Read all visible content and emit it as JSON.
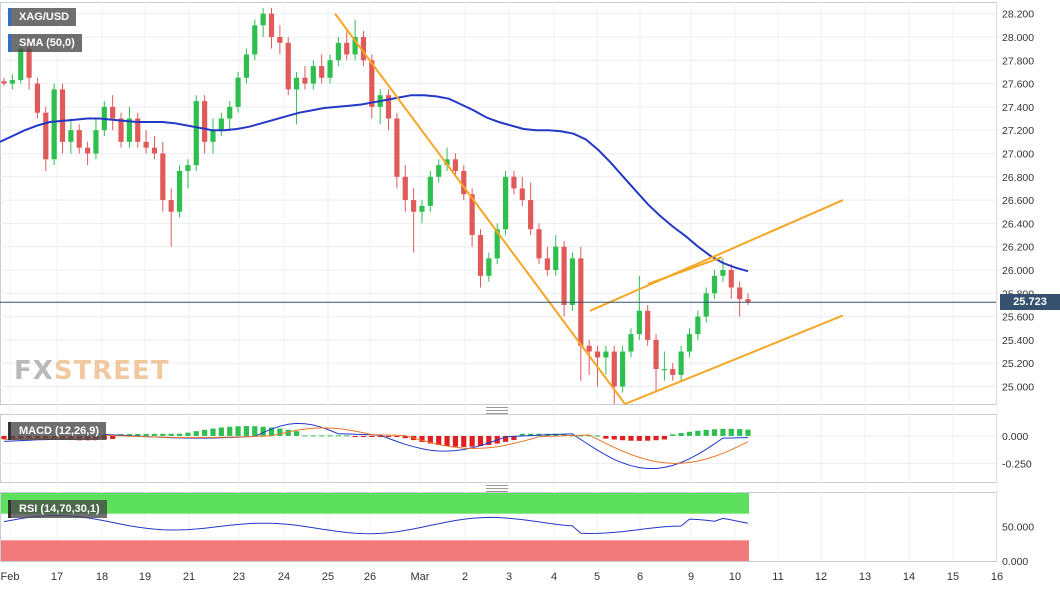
{
  "chart": {
    "symbol": "XAG/USD",
    "indicator_sma": "SMA (50,0)",
    "indicator_macd": "MACD (12,26,9)",
    "indicator_rsi": "RSI (14,70,30,1)",
    "last_price_label": "25.723",
    "watermark_fx": "FX",
    "watermark_street": "STREET"
  },
  "chart_data": [
    {
      "type": "candlestick",
      "title": "XAG/USD",
      "y_ticks": [
        "28.200",
        "28.000",
        "27.800",
        "27.600",
        "27.400",
        "27.200",
        "27.000",
        "26.800",
        "26.600",
        "26.400",
        "26.200",
        "26.000",
        "25.800",
        "25.600",
        "25.400",
        "25.200",
        "25.000"
      ],
      "x_ticks": [
        "Feb",
        "17",
        "18",
        "19",
        "21",
        "23",
        "24",
        "25",
        "26",
        "Mar",
        "2",
        "3",
        "4",
        "5",
        "6",
        "9",
        "10",
        "11",
        "12",
        "13",
        "14",
        "15",
        "16"
      ],
      "ylim": [
        24.85,
        28.3
      ],
      "last_price": 25.723,
      "colors": {
        "up": "#2fbf4f",
        "down": "#e05a5a",
        "sma": "#2438c8",
        "trendline": "#f5a623",
        "price_line": "#36506f"
      },
      "candles": [
        [
          27.62,
          27.65,
          27.58,
          27.6
        ],
        [
          27.6,
          27.68,
          27.55,
          27.63
        ],
        [
          27.63,
          27.95,
          27.6,
          27.9
        ],
        [
          27.9,
          27.95,
          27.55,
          27.65
        ],
        [
          27.6,
          27.65,
          27.3,
          27.35
        ],
        [
          27.35,
          27.4,
          26.85,
          26.95
        ],
        [
          26.95,
          27.6,
          26.9,
          27.55
        ],
        [
          27.55,
          27.6,
          27.0,
          27.1
        ],
        [
          27.1,
          27.3,
          27.0,
          27.2
        ],
        [
          27.2,
          27.25,
          27.0,
          27.05
        ],
        [
          27.05,
          27.1,
          26.9,
          27.0
        ],
        [
          27.0,
          27.3,
          26.95,
          27.2
        ],
        [
          27.2,
          27.45,
          27.15,
          27.4
        ],
        [
          27.4,
          27.5,
          27.2,
          27.3
        ],
        [
          27.3,
          27.35,
          27.05,
          27.1
        ],
        [
          27.1,
          27.4,
          27.05,
          27.3
        ],
        [
          27.3,
          27.35,
          27.05,
          27.1
        ],
        [
          27.1,
          27.2,
          27.0,
          27.05
        ],
        [
          27.05,
          27.15,
          26.95,
          27.0
        ],
        [
          27.0,
          27.1,
          26.5,
          26.6
        ],
        [
          26.6,
          26.7,
          26.2,
          26.5
        ],
        [
          26.5,
          26.9,
          26.45,
          26.85
        ],
        [
          26.85,
          26.95,
          26.7,
          26.9
        ],
        [
          26.9,
          27.5,
          26.85,
          27.45
        ],
        [
          27.45,
          27.5,
          27.0,
          27.1
        ],
        [
          27.1,
          27.3,
          27.0,
          27.2
        ],
        [
          27.2,
          27.35,
          27.15,
          27.3
        ],
        [
          27.3,
          27.45,
          27.2,
          27.4
        ],
        [
          27.4,
          27.7,
          27.35,
          27.65
        ],
        [
          27.65,
          27.9,
          27.6,
          27.85
        ],
        [
          27.85,
          28.15,
          27.8,
          28.1
        ],
        [
          28.1,
          28.25,
          28.0,
          28.2
        ],
        [
          28.2,
          28.25,
          27.9,
          28.0
        ],
        [
          28.0,
          28.1,
          27.85,
          27.95
        ],
        [
          27.95,
          28.0,
          27.5,
          27.55
        ],
        [
          27.55,
          27.7,
          27.25,
          27.65
        ],
        [
          27.65,
          27.75,
          27.55,
          27.6
        ],
        [
          27.6,
          27.8,
          27.55,
          27.75
        ],
        [
          27.75,
          27.85,
          27.6,
          27.65
        ],
        [
          27.65,
          27.85,
          27.6,
          27.8
        ],
        [
          27.8,
          28.0,
          27.75,
          27.95
        ],
        [
          27.95,
          28.05,
          27.8,
          27.85
        ],
        [
          27.85,
          28.15,
          27.8,
          28.0
        ],
        [
          28.0,
          28.05,
          27.75,
          27.8
        ],
        [
          27.8,
          27.85,
          27.3,
          27.4
        ],
        [
          27.4,
          27.55,
          27.25,
          27.5
        ],
        [
          27.5,
          27.55,
          27.2,
          27.3
        ],
        [
          27.3,
          27.35,
          26.7,
          26.8
        ],
        [
          26.8,
          26.9,
          26.5,
          26.6
        ],
        [
          26.6,
          26.7,
          26.15,
          26.5
        ],
        [
          26.5,
          26.6,
          26.4,
          26.55
        ],
        [
          26.55,
          26.85,
          26.5,
          26.8
        ],
        [
          26.8,
          26.95,
          26.75,
          26.9
        ],
        [
          26.9,
          27.05,
          26.85,
          26.95
        ],
        [
          26.95,
          27.0,
          26.8,
          26.85
        ],
        [
          26.85,
          26.9,
          26.6,
          26.65
        ],
        [
          26.65,
          26.7,
          26.2,
          26.3
        ],
        [
          26.3,
          26.35,
          25.85,
          25.95
        ],
        [
          25.95,
          26.15,
          25.9,
          26.1
        ],
        [
          26.1,
          26.4,
          26.05,
          26.35
        ],
        [
          26.35,
          26.85,
          26.3,
          26.8
        ],
        [
          26.8,
          26.85,
          26.65,
          26.7
        ],
        [
          26.7,
          26.8,
          26.55,
          26.6
        ],
        [
          26.6,
          26.75,
          26.3,
          26.35
        ],
        [
          26.35,
          26.4,
          26.05,
          26.1
        ],
        [
          26.1,
          26.2,
          25.95,
          26.0
        ],
        [
          26.0,
          26.3,
          25.95,
          26.2
        ],
        [
          26.2,
          26.25,
          25.6,
          25.7
        ],
        [
          25.7,
          26.15,
          25.65,
          26.1
        ],
        [
          26.1,
          26.2,
          25.05,
          25.35
        ],
        [
          25.35,
          25.4,
          25.1,
          25.3
        ],
        [
          25.3,
          25.35,
          25.0,
          25.25
        ],
        [
          25.25,
          25.35,
          25.1,
          25.3
        ],
        [
          25.3,
          25.35,
          24.85,
          25.0
        ],
        [
          25.0,
          25.35,
          24.95,
          25.3
        ],
        [
          25.3,
          25.5,
          25.25,
          25.45
        ],
        [
          25.45,
          25.95,
          25.4,
          25.65
        ],
        [
          25.65,
          25.7,
          25.35,
          25.4
        ],
        [
          25.4,
          25.45,
          24.95,
          25.15
        ],
        [
          25.15,
          25.3,
          25.05,
          25.15
        ],
        [
          25.15,
          25.2,
          25.05,
          25.1
        ],
        [
          25.1,
          25.35,
          25.05,
          25.3
        ],
        [
          25.3,
          25.5,
          25.25,
          25.45
        ],
        [
          25.45,
          25.65,
          25.4,
          25.6
        ],
        [
          25.6,
          25.85,
          25.55,
          25.8
        ],
        [
          25.8,
          26.0,
          25.75,
          25.95
        ],
        [
          25.95,
          26.1,
          25.9,
          26.0
        ],
        [
          26.0,
          26.05,
          25.75,
          25.85
        ],
        [
          25.85,
          25.9,
          25.6,
          25.75
        ],
        [
          25.75,
          25.8,
          25.7,
          25.723
        ]
      ],
      "sma_50": [
        27.1,
        27.15,
        27.2,
        27.24,
        27.27,
        27.28,
        27.29,
        27.3,
        27.3,
        27.29,
        27.28,
        27.27,
        27.27,
        27.27,
        27.26,
        27.24,
        27.22,
        27.2,
        27.2,
        27.21,
        27.23,
        27.26,
        27.29,
        27.32,
        27.35,
        27.37,
        27.39,
        27.4,
        27.41,
        27.42,
        27.44,
        27.46,
        27.48,
        27.5,
        27.5,
        27.49,
        27.47,
        27.42,
        27.37,
        27.31,
        27.27,
        27.24,
        27.21,
        27.2,
        27.2,
        27.19,
        27.17,
        27.12,
        27.03,
        26.92,
        26.8,
        26.68,
        26.56,
        26.46,
        26.37,
        26.29,
        26.2,
        26.12,
        26.06,
        26.02,
        25.99
      ],
      "trendlines": [
        {
          "from": [
            28.2
          ],
          "to": [
            24.85
          ]
        },
        {
          "from": [
            25.65
          ],
          "to": [
            26.6
          ]
        },
        {
          "from": [
            24.85
          ],
          "to": [
            25.61
          ]
        }
      ]
    },
    {
      "type": "bar+line",
      "title": "MACD (12,26,9)",
      "y_ticks": [
        "0.000",
        "-0.250"
      ],
      "ylim": [
        -0.42,
        0.2
      ]
    },
    {
      "type": "line",
      "title": "RSI (14,70,30,1)",
      "y_ticks": [
        "50.000",
        "0.000"
      ],
      "ylim": [
        0,
        100
      ]
    }
  ]
}
